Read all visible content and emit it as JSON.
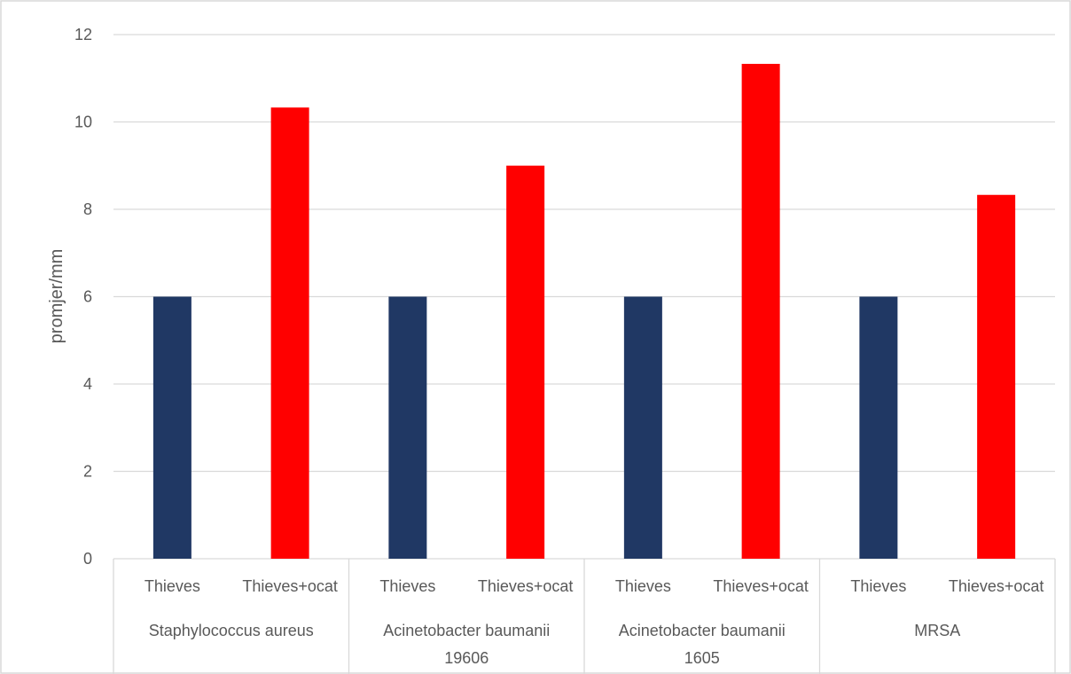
{
  "chart_data": {
    "type": "bar",
    "ylabel": "promjer/mm",
    "ylim": [
      0,
      12
    ],
    "ytick_step": 2,
    "grid": true,
    "groups": [
      {
        "label": "Staphylococcus aureus",
        "lines": [
          "Staphylococcus aureus"
        ]
      },
      {
        "label": "Acinetobacter baumanii 19606",
        "lines": [
          "Acinetobacter baumanii",
          "19606"
        ]
      },
      {
        "label": "Acinetobacter baumanii 1605",
        "lines": [
          "Acinetobacter baumanii",
          "1605"
        ]
      },
      {
        "label": "MRSA",
        "lines": [
          "MRSA"
        ]
      }
    ],
    "bars": [
      {
        "group": 0,
        "category": "Thieves",
        "value": 6,
        "color": "#203864"
      },
      {
        "group": 0,
        "category": "Thieves+ocat",
        "value": 10.33,
        "color": "#ff0000"
      },
      {
        "group": 1,
        "category": "Thieves",
        "value": 6,
        "color": "#203864"
      },
      {
        "group": 1,
        "category": "Thieves+ocat",
        "value": 9,
        "color": "#ff0000"
      },
      {
        "group": 2,
        "category": "Thieves",
        "value": 6,
        "color": "#203864"
      },
      {
        "group": 2,
        "category": "Thieves+ocat",
        "value": 11.33,
        "color": "#ff0000"
      },
      {
        "group": 3,
        "category": "Thieves",
        "value": 6,
        "color": "#203864"
      },
      {
        "group": 3,
        "category": "Thieves+ocat",
        "value": 8.33,
        "color": "#ff0000"
      }
    ]
  }
}
